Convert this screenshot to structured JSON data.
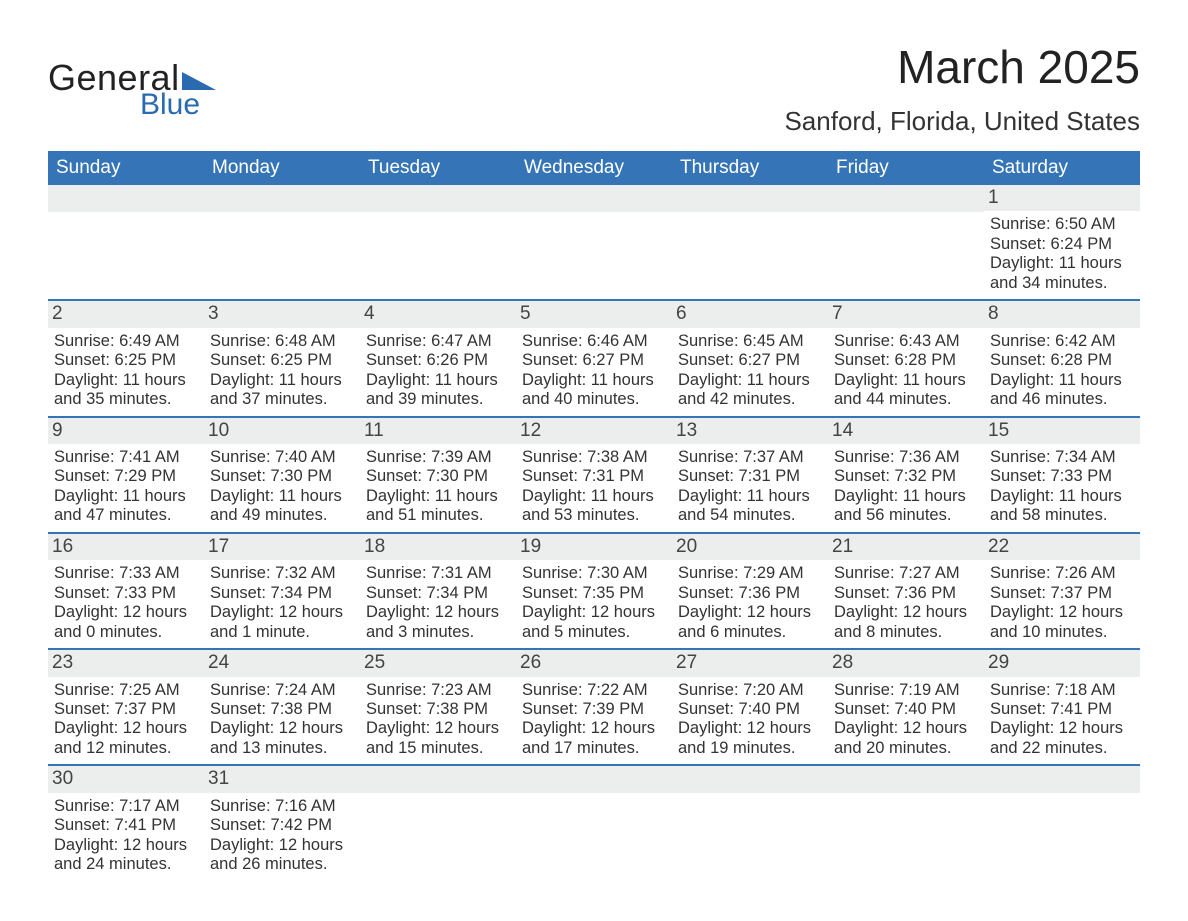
{
  "logo": {
    "word1": "General",
    "word2": "Blue"
  },
  "title": "March 2025",
  "location": "Sanford, Florida, United States",
  "day_names": [
    "Sunday",
    "Monday",
    "Tuesday",
    "Wednesday",
    "Thursday",
    "Friday",
    "Saturday"
  ],
  "colors": {
    "header_bg": "#3575b7",
    "header_text": "#ffffff",
    "band_bg": "#eceded",
    "week_divider": "#3575b7",
    "logo_blue": "#2a6bb0",
    "text": "#333333"
  },
  "weeks": [
    [
      {
        "date": "",
        "sunrise": "",
        "sunset": "",
        "daylight1": "",
        "daylight2": ""
      },
      {
        "date": "",
        "sunrise": "",
        "sunset": "",
        "daylight1": "",
        "daylight2": ""
      },
      {
        "date": "",
        "sunrise": "",
        "sunset": "",
        "daylight1": "",
        "daylight2": ""
      },
      {
        "date": "",
        "sunrise": "",
        "sunset": "",
        "daylight1": "",
        "daylight2": ""
      },
      {
        "date": "",
        "sunrise": "",
        "sunset": "",
        "daylight1": "",
        "daylight2": ""
      },
      {
        "date": "",
        "sunrise": "",
        "sunset": "",
        "daylight1": "",
        "daylight2": ""
      },
      {
        "date": "1",
        "sunrise": "Sunrise: 6:50 AM",
        "sunset": "Sunset: 6:24 PM",
        "daylight1": "Daylight: 11 hours",
        "daylight2": "and 34 minutes."
      }
    ],
    [
      {
        "date": "2",
        "sunrise": "Sunrise: 6:49 AM",
        "sunset": "Sunset: 6:25 PM",
        "daylight1": "Daylight: 11 hours",
        "daylight2": "and 35 minutes."
      },
      {
        "date": "3",
        "sunrise": "Sunrise: 6:48 AM",
        "sunset": "Sunset: 6:25 PM",
        "daylight1": "Daylight: 11 hours",
        "daylight2": "and 37 minutes."
      },
      {
        "date": "4",
        "sunrise": "Sunrise: 6:47 AM",
        "sunset": "Sunset: 6:26 PM",
        "daylight1": "Daylight: 11 hours",
        "daylight2": "and 39 minutes."
      },
      {
        "date": "5",
        "sunrise": "Sunrise: 6:46 AM",
        "sunset": "Sunset: 6:27 PM",
        "daylight1": "Daylight: 11 hours",
        "daylight2": "and 40 minutes."
      },
      {
        "date": "6",
        "sunrise": "Sunrise: 6:45 AM",
        "sunset": "Sunset: 6:27 PM",
        "daylight1": "Daylight: 11 hours",
        "daylight2": "and 42 minutes."
      },
      {
        "date": "7",
        "sunrise": "Sunrise: 6:43 AM",
        "sunset": "Sunset: 6:28 PM",
        "daylight1": "Daylight: 11 hours",
        "daylight2": "and 44 minutes."
      },
      {
        "date": "8",
        "sunrise": "Sunrise: 6:42 AM",
        "sunset": "Sunset: 6:28 PM",
        "daylight1": "Daylight: 11 hours",
        "daylight2": "and 46 minutes."
      }
    ],
    [
      {
        "date": "9",
        "sunrise": "Sunrise: 7:41 AM",
        "sunset": "Sunset: 7:29 PM",
        "daylight1": "Daylight: 11 hours",
        "daylight2": "and 47 minutes."
      },
      {
        "date": "10",
        "sunrise": "Sunrise: 7:40 AM",
        "sunset": "Sunset: 7:30 PM",
        "daylight1": "Daylight: 11 hours",
        "daylight2": "and 49 minutes."
      },
      {
        "date": "11",
        "sunrise": "Sunrise: 7:39 AM",
        "sunset": "Sunset: 7:30 PM",
        "daylight1": "Daylight: 11 hours",
        "daylight2": "and 51 minutes."
      },
      {
        "date": "12",
        "sunrise": "Sunrise: 7:38 AM",
        "sunset": "Sunset: 7:31 PM",
        "daylight1": "Daylight: 11 hours",
        "daylight2": "and 53 minutes."
      },
      {
        "date": "13",
        "sunrise": "Sunrise: 7:37 AM",
        "sunset": "Sunset: 7:31 PM",
        "daylight1": "Daylight: 11 hours",
        "daylight2": "and 54 minutes."
      },
      {
        "date": "14",
        "sunrise": "Sunrise: 7:36 AM",
        "sunset": "Sunset: 7:32 PM",
        "daylight1": "Daylight: 11 hours",
        "daylight2": "and 56 minutes."
      },
      {
        "date": "15",
        "sunrise": "Sunrise: 7:34 AM",
        "sunset": "Sunset: 7:33 PM",
        "daylight1": "Daylight: 11 hours",
        "daylight2": "and 58 minutes."
      }
    ],
    [
      {
        "date": "16",
        "sunrise": "Sunrise: 7:33 AM",
        "sunset": "Sunset: 7:33 PM",
        "daylight1": "Daylight: 12 hours",
        "daylight2": "and 0 minutes."
      },
      {
        "date": "17",
        "sunrise": "Sunrise: 7:32 AM",
        "sunset": "Sunset: 7:34 PM",
        "daylight1": "Daylight: 12 hours",
        "daylight2": "and 1 minute."
      },
      {
        "date": "18",
        "sunrise": "Sunrise: 7:31 AM",
        "sunset": "Sunset: 7:34 PM",
        "daylight1": "Daylight: 12 hours",
        "daylight2": "and 3 minutes."
      },
      {
        "date": "19",
        "sunrise": "Sunrise: 7:30 AM",
        "sunset": "Sunset: 7:35 PM",
        "daylight1": "Daylight: 12 hours",
        "daylight2": "and 5 minutes."
      },
      {
        "date": "20",
        "sunrise": "Sunrise: 7:29 AM",
        "sunset": "Sunset: 7:36 PM",
        "daylight1": "Daylight: 12 hours",
        "daylight2": "and 6 minutes."
      },
      {
        "date": "21",
        "sunrise": "Sunrise: 7:27 AM",
        "sunset": "Sunset: 7:36 PM",
        "daylight1": "Daylight: 12 hours",
        "daylight2": "and 8 minutes."
      },
      {
        "date": "22",
        "sunrise": "Sunrise: 7:26 AM",
        "sunset": "Sunset: 7:37 PM",
        "daylight1": "Daylight: 12 hours",
        "daylight2": "and 10 minutes."
      }
    ],
    [
      {
        "date": "23",
        "sunrise": "Sunrise: 7:25 AM",
        "sunset": "Sunset: 7:37 PM",
        "daylight1": "Daylight: 12 hours",
        "daylight2": "and 12 minutes."
      },
      {
        "date": "24",
        "sunrise": "Sunrise: 7:24 AM",
        "sunset": "Sunset: 7:38 PM",
        "daylight1": "Daylight: 12 hours",
        "daylight2": "and 13 minutes."
      },
      {
        "date": "25",
        "sunrise": "Sunrise: 7:23 AM",
        "sunset": "Sunset: 7:38 PM",
        "daylight1": "Daylight: 12 hours",
        "daylight2": "and 15 minutes."
      },
      {
        "date": "26",
        "sunrise": "Sunrise: 7:22 AM",
        "sunset": "Sunset: 7:39 PM",
        "daylight1": "Daylight: 12 hours",
        "daylight2": "and 17 minutes."
      },
      {
        "date": "27",
        "sunrise": "Sunrise: 7:20 AM",
        "sunset": "Sunset: 7:40 PM",
        "daylight1": "Daylight: 12 hours",
        "daylight2": "and 19 minutes."
      },
      {
        "date": "28",
        "sunrise": "Sunrise: 7:19 AM",
        "sunset": "Sunset: 7:40 PM",
        "daylight1": "Daylight: 12 hours",
        "daylight2": "and 20 minutes."
      },
      {
        "date": "29",
        "sunrise": "Sunrise: 7:18 AM",
        "sunset": "Sunset: 7:41 PM",
        "daylight1": "Daylight: 12 hours",
        "daylight2": "and 22 minutes."
      }
    ],
    [
      {
        "date": "30",
        "sunrise": "Sunrise: 7:17 AM",
        "sunset": "Sunset: 7:41 PM",
        "daylight1": "Daylight: 12 hours",
        "daylight2": "and 24 minutes."
      },
      {
        "date": "31",
        "sunrise": "Sunrise: 7:16 AM",
        "sunset": "Sunset: 7:42 PM",
        "daylight1": "Daylight: 12 hours",
        "daylight2": "and 26 minutes."
      },
      {
        "date": "",
        "sunrise": "",
        "sunset": "",
        "daylight1": "",
        "daylight2": ""
      },
      {
        "date": "",
        "sunrise": "",
        "sunset": "",
        "daylight1": "",
        "daylight2": ""
      },
      {
        "date": "",
        "sunrise": "",
        "sunset": "",
        "daylight1": "",
        "daylight2": ""
      },
      {
        "date": "",
        "sunrise": "",
        "sunset": "",
        "daylight1": "",
        "daylight2": ""
      },
      {
        "date": "",
        "sunrise": "",
        "sunset": "",
        "daylight1": "",
        "daylight2": ""
      }
    ]
  ]
}
